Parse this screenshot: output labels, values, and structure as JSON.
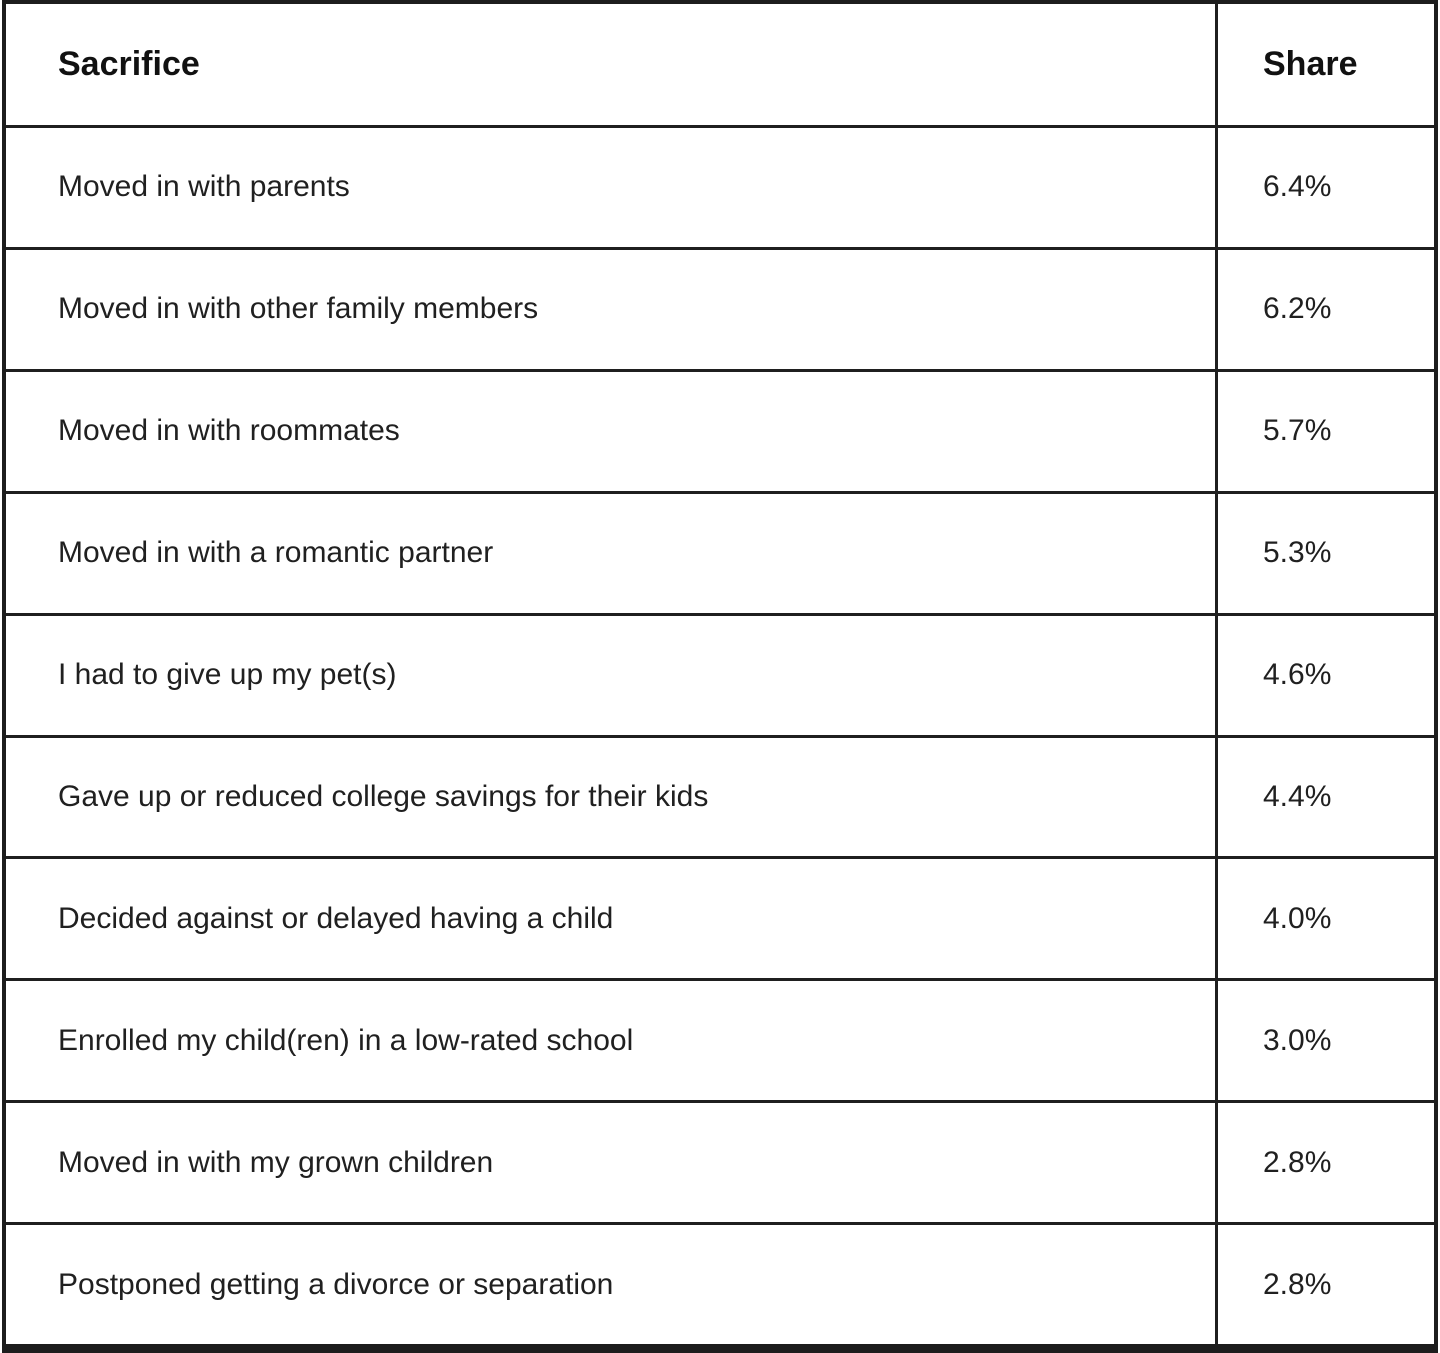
{
  "chart_data": {
    "type": "table",
    "columns": [
      "Sacrifice",
      "Share"
    ],
    "rows": [
      [
        "Moved in with parents",
        "6.4%"
      ],
      [
        "Moved in with other family members",
        "6.2%"
      ],
      [
        "Moved in with roommates",
        "5.7%"
      ],
      [
        "Moved in with a romantic partner",
        "5.3%"
      ],
      [
        "I had to give up my pet(s)",
        "4.6%"
      ],
      [
        "Gave up or reduced college savings for their kids",
        "4.4%"
      ],
      [
        "Decided against or delayed having a child",
        "4.0%"
      ],
      [
        "Enrolled my child(ren) in a low-rated school",
        "3.0%"
      ],
      [
        "Moved in with my grown children",
        "2.8%"
      ],
      [
        "Postponed getting a divorce or separation",
        "2.8%"
      ]
    ],
    "values": [
      6.4,
      6.2,
      5.7,
      5.3,
      4.6,
      4.4,
      4.0,
      3.0,
      2.8,
      2.8
    ],
    "title": "",
    "legend": "none",
    "grid": "full-borders"
  },
  "colors": {
    "border": "#1d1d1d",
    "text": "#202020",
    "header_text": "#111111",
    "background": "#ffffff"
  }
}
